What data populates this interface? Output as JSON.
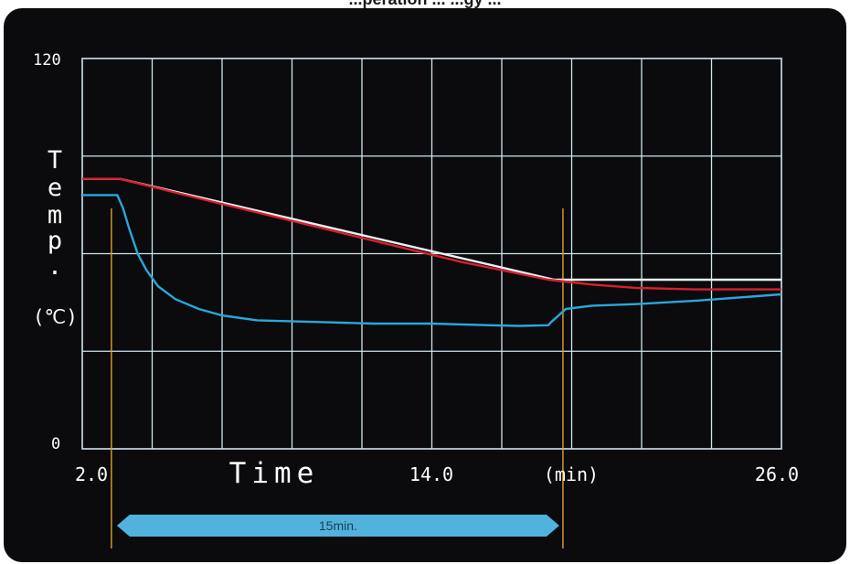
{
  "header_fragment": "...peration ... ...gy ...",
  "chart_data": {
    "type": "line",
    "xlim": [
      2.0,
      26.0
    ],
    "ylim": [
      0,
      120
    ],
    "x_tick_labels": [
      "2.0",
      "14.0",
      "26.0"
    ],
    "y_tick_labels": [
      "120",
      "0"
    ],
    "xlabel": "Time",
    "x_unit": "(min)",
    "ylabel_chars": [
      "T",
      "e",
      "m",
      "p",
      "."
    ],
    "y_unit": "(℃)",
    "grid": true,
    "series": [
      {
        "color": "#e8f0f4",
        "x": [
          2.0,
          3.3,
          18.2,
          26.0
        ],
        "y": [
          83,
          83,
          52,
          52
        ]
      },
      {
        "color": "#d8202e",
        "x": [
          2.0,
          3.3,
          6.0,
          9.0,
          12.0,
          15.0,
          18.0,
          19.5,
          21.0,
          23.0,
          26.0
        ],
        "y": [
          83,
          83,
          77,
          70.5,
          64,
          57.5,
          52,
          50.5,
          49.5,
          49,
          49
        ]
      },
      {
        "color": "#28a8dc",
        "x": [
          2.0,
          3.2,
          3.4,
          3.6,
          3.9,
          4.2,
          4.6,
          5.2,
          6.0,
          6.8,
          8.0,
          10.0,
          12.0,
          14.0,
          16.0,
          17.0,
          18.0,
          18.1,
          18.6,
          19.5,
          21.0,
          23.0,
          26.0
        ],
        "y": [
          78,
          78,
          74,
          68,
          60,
          55,
          50,
          46,
          43,
          41,
          39.5,
          39,
          38.5,
          38.5,
          38,
          37.8,
          38,
          39,
          43,
          44,
          44.5,
          45.5,
          47.5
        ]
      }
    ],
    "markers": [
      {
        "x": 3.0,
        "color": "#e0a030"
      },
      {
        "x": 18.5,
        "color": "#e0a030"
      }
    ],
    "span_bar": {
      "x": [
        3.0,
        18.5
      ],
      "label": "15min.",
      "color": "#52b2de"
    }
  }
}
